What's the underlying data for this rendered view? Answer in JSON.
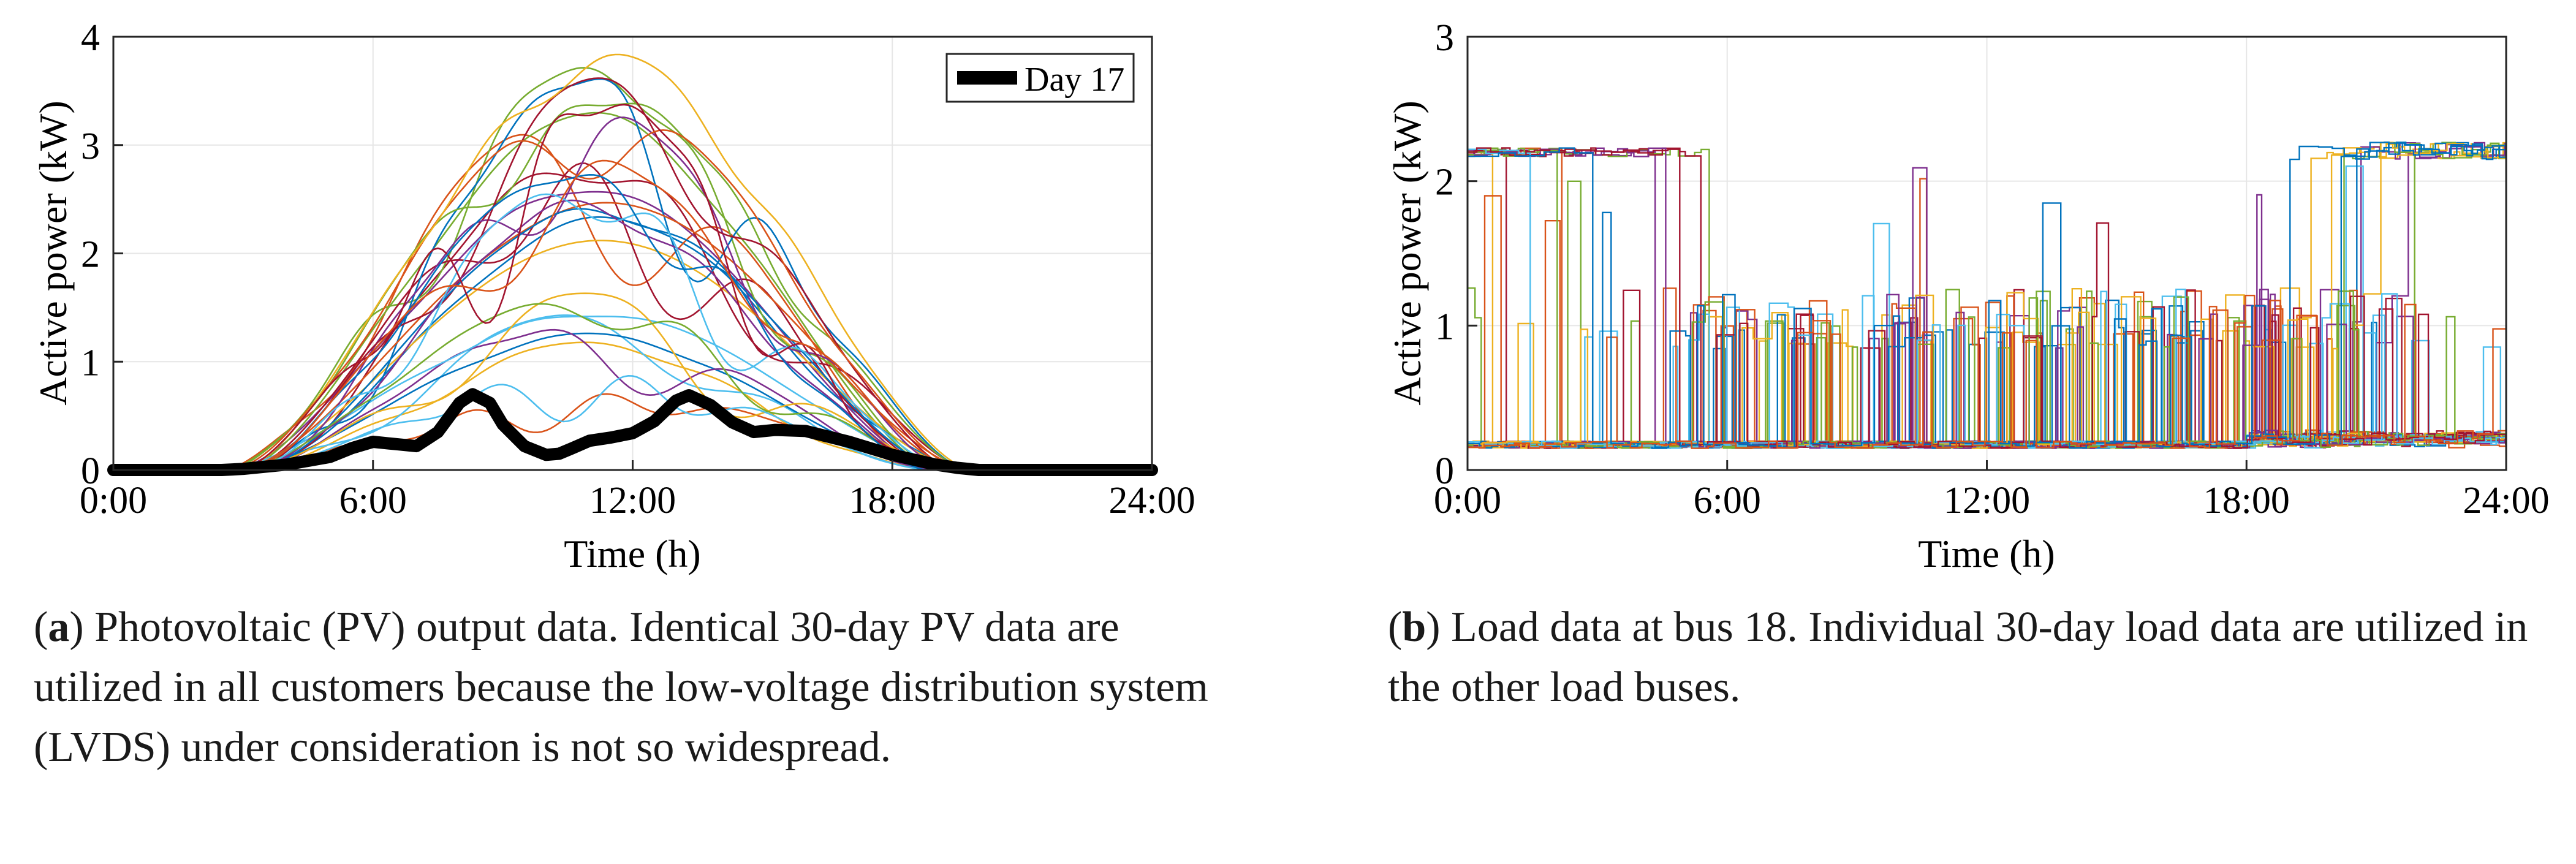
{
  "captions": {
    "a": {
      "letter": "a",
      "text": ") Photovoltaic (PV) output data.  Identical 30-day PV data are utilized in all customers because the low-voltage distribution system (LVDS) under consideration is not so widespread."
    },
    "b": {
      "letter": "b",
      "text": ") Load data at bus 18. Individual 30-day load data are utilized in the other load buses."
    }
  },
  "colors": [
    "#0072bd",
    "#d95319",
    "#edb120",
    "#7e2f8e",
    "#77ac30",
    "#4dbeee",
    "#a2142f"
  ],
  "chart_data": [
    {
      "type": "line",
      "id": "pv",
      "title": "",
      "xlabel": "Time (h)",
      "ylabel": "Active power (kW)",
      "xlim": [
        0,
        24
      ],
      "ylim": [
        0,
        4
      ],
      "xticks": [
        0,
        6,
        12,
        18,
        24
      ],
      "xticklabels": [
        "0:00",
        "6:00",
        "12:00",
        "18:00",
        "24:00"
      ],
      "yticks": [
        0,
        1,
        2,
        3,
        4
      ],
      "yticklabels": [
        "0",
        "1",
        "2",
        "3",
        "4"
      ],
      "grid": true,
      "legend": {
        "position": "top-right",
        "entries": [
          "Day 17"
        ]
      },
      "series_count": 30,
      "sunrise_h": 2.5,
      "sunset_h": 20.0,
      "peak_range_kw": [
        0.7,
        4.0
      ],
      "series": [
        {
          "name": "Day 17",
          "highlight": true,
          "x": [
            0,
            2.5,
            3,
            4,
            5,
            5.5,
            6,
            6.5,
            7,
            7.5,
            8,
            8.3,
            8.7,
            9,
            9.5,
            10,
            10.3,
            10.6,
            11,
            11.5,
            12,
            12.5,
            13,
            13.3,
            13.8,
            14.3,
            14.8,
            15.3,
            16,
            17,
            18,
            19,
            19.5,
            20,
            24
          ],
          "y": [
            0,
            0,
            0.01,
            0.05,
            0.12,
            0.2,
            0.26,
            0.24,
            0.22,
            0.35,
            0.62,
            0.7,
            0.62,
            0.42,
            0.22,
            0.14,
            0.15,
            0.2,
            0.27,
            0.3,
            0.34,
            0.45,
            0.64,
            0.69,
            0.6,
            0.44,
            0.35,
            0.37,
            0.36,
            0.26,
            0.14,
            0.05,
            0.02,
            0,
            0
          ]
        }
      ]
    },
    {
      "type": "line",
      "id": "load",
      "title": "",
      "xlabel": "Time (h)",
      "ylabel": "Active power (kW)",
      "xlim": [
        0,
        24
      ],
      "ylim": [
        0,
        3
      ],
      "xticks": [
        0,
        6,
        12,
        18,
        24
      ],
      "xticklabels": [
        "0:00",
        "6:00",
        "12:00",
        "18:00",
        "24:00"
      ],
      "yticks": [
        0,
        1,
        2,
        3
      ],
      "yticklabels": [
        "0",
        "1",
        "2",
        "3"
      ],
      "grid": true,
      "series_count": 30,
      "base_load_kw": 0.17,
      "high_state_kw": 2.2,
      "mid_state_kw": 1.2
    }
  ]
}
